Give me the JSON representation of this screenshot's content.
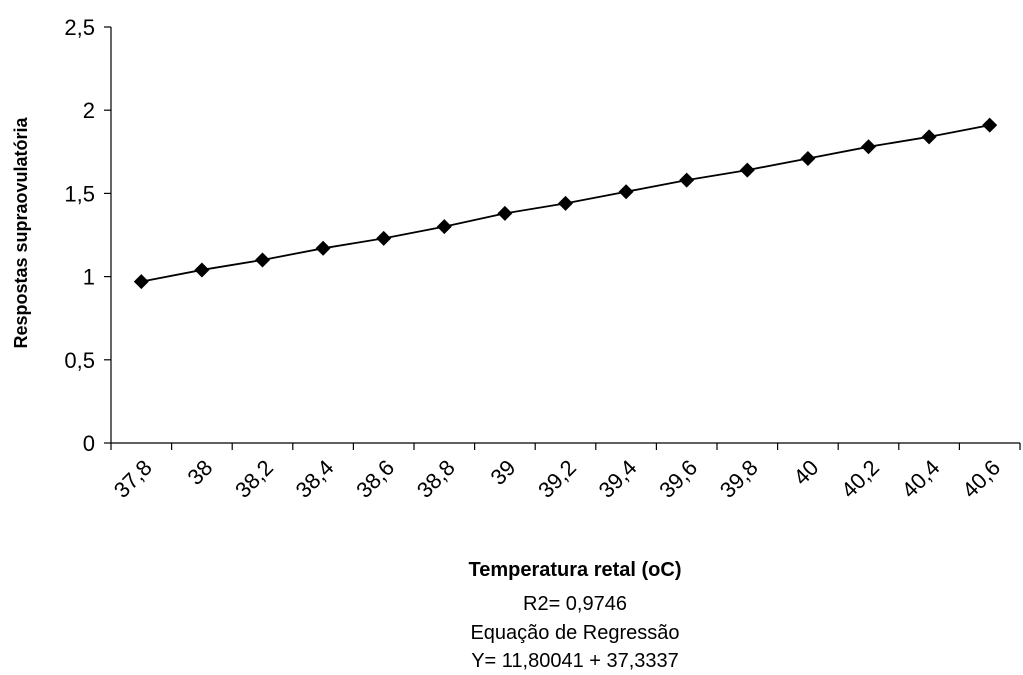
{
  "chart_data": {
    "type": "line",
    "x": [
      37.8,
      38,
      38.2,
      38.4,
      38.6,
      38.8,
      39,
      39.2,
      39.4,
      39.6,
      39.8,
      40,
      40.2,
      40.4,
      40.6
    ],
    "x_tick_labels": [
      "37,8",
      "38",
      "38,2",
      "38,4",
      "38,6",
      "38,8",
      "39",
      "39,2",
      "39,4",
      "39,6",
      "39,8",
      "40",
      "40,2",
      "40,4",
      "40,6"
    ],
    "series": [
      {
        "values": [
          0.97,
          1.04,
          1.1,
          1.17,
          1.23,
          1.3,
          1.38,
          1.44,
          1.51,
          1.58,
          1.64,
          1.71,
          1.78,
          1.84,
          1.91
        ],
        "color": "#000000",
        "marker": "diamond"
      }
    ],
    "ylim": [
      0,
      2.5
    ],
    "y_ticks": [
      0,
      0.5,
      1,
      1.5,
      2,
      2.5
    ],
    "y_tick_labels": [
      "0",
      "0,5",
      "1",
      "1,5",
      "2",
      "2,5"
    ],
    "ylabel": "Respostas supraovulatória",
    "xlabel": "Temperatura retal (oC)",
    "annotations": [
      "R2= 0,9746",
      "Equação de Regressão",
      "Y= 11,80041 + 37,3337"
    ],
    "grid": false,
    "legend": "none"
  }
}
